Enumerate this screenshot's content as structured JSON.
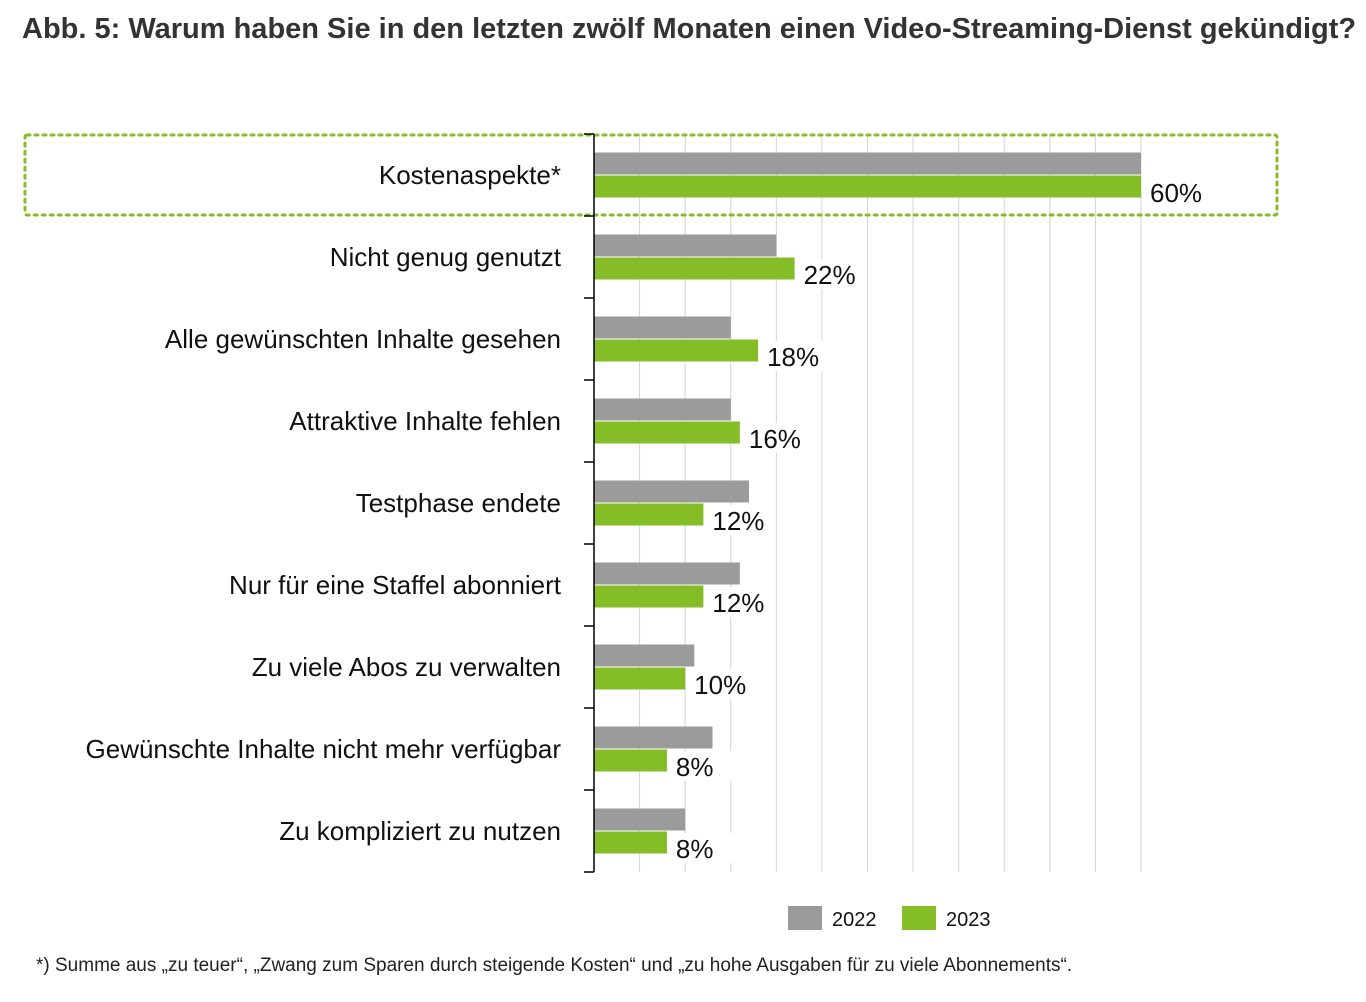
{
  "title": "Abb. 5: Warum haben Sie in den letzten zwölf Monaten einen Video-Streaming-Dienst gekündigt?",
  "footnote": "*) Summe aus „zu teuer“, „Zwang zum Sparen durch steigende Kosten“ und „zu hohe Ausgaben für zu viele Abonnements“.",
  "colors": {
    "2022": "#9b9b9b",
    "2023": "#84bd26",
    "highlight": "#84bd26",
    "grid": "#d4d4d4",
    "axis": "#000000"
  },
  "chart_data": {
    "type": "bar",
    "orientation": "horizontal",
    "categories": [
      "Kostenaspekte*",
      "Nicht genug genutzt",
      "Alle gewünschten Inhalte gesehen",
      "Attraktive Inhalte fehlen",
      "Testphase endete",
      "Nur für eine Staffel abonniert",
      "Zu viele Abos zu verwalten",
      "Gewünschte Inhalte nicht mehr verfügbar",
      "Zu kompliziert zu nutzen"
    ],
    "series": [
      {
        "name": "2022",
        "values": [
          60,
          20,
          15,
          15,
          17,
          16,
          11,
          13,
          10
        ]
      },
      {
        "name": "2023",
        "values": [
          60,
          22,
          18,
          16,
          12,
          12,
          10,
          8,
          8
        ]
      }
    ],
    "data_labels": [
      "60%",
      "22%",
      "18%",
      "16%",
      "12%",
      "12%",
      "10%",
      "8%",
      "8%"
    ],
    "xlim": [
      0,
      60
    ],
    "grid_step": 5,
    "grid": true,
    "legend": "bottom-right",
    "highlighted_category": "Kostenaspekte*",
    "xlabel": "",
    "ylabel": ""
  }
}
